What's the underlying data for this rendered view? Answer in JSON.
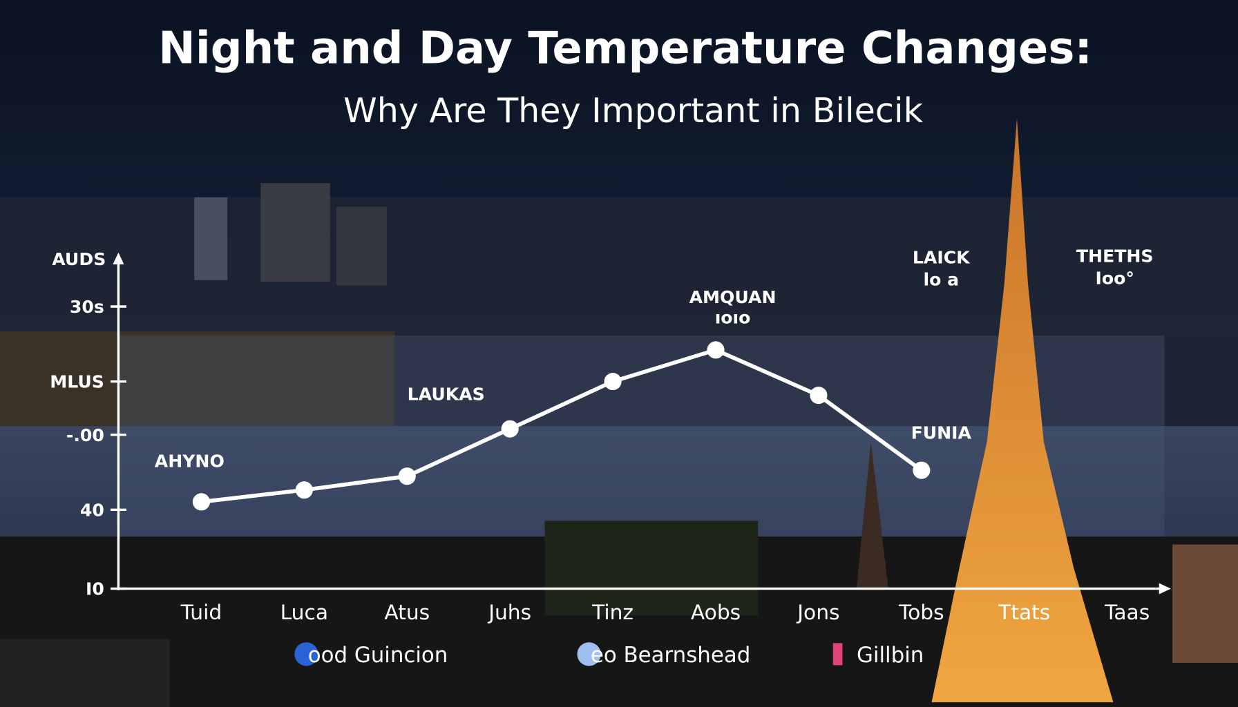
{
  "chart_data": {
    "type": "line",
    "title": "Night and Day Temperature Changes:",
    "subtitle": "Why Are They Important in Bilecik",
    "y_label": "AUDS",
    "categories": [
      "Tuid",
      "Luca",
      "Atus",
      "Juhs",
      "Tinz",
      "Aobs",
      "Jons",
      "Tobs",
      "Ttats",
      "Taas"
    ],
    "series": [
      {
        "name": "ood Guincion",
        "color": "#ffffff",
        "values": [
          44,
          50,
          57,
          81,
          105,
          121,
          98,
          60,
          null,
          null
        ]
      }
    ],
    "ylim": [
      0,
      168
    ],
    "yticks": [
      {
        "value": 0,
        "label": "I0"
      },
      40,
      {
        "value": 78,
        "label": "-.00"
      },
      {
        "value": 105,
        "label": "MLUS"
      },
      {
        "value": 143,
        "label": "30s"
      }
    ],
    "annotations": [
      "AHYNO",
      "LAUKAS",
      "AMQUAN",
      "ıoıo",
      "LAICK",
      "lo a",
      "THETHS",
      "Ioo°",
      "FUNIA"
    ],
    "legend": [
      {
        "name": "ood Guincion",
        "color": "#2a63d6"
      },
      {
        "name": "eo Bearnshead",
        "color": "#9fc0ef"
      },
      {
        "name": "Gillbin",
        "color": "#e0457a"
      }
    ]
  }
}
